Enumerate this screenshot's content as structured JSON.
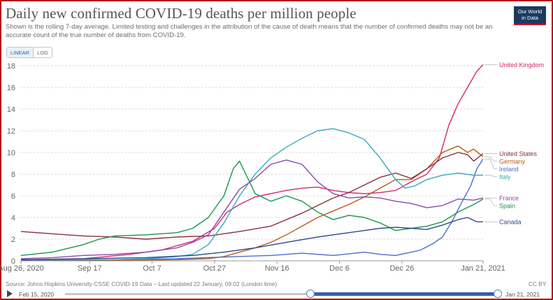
{
  "header": {
    "title": "Daily new confirmed COVID-19 deaths per million people",
    "subtitle": "Shown is the rolling 7-day average. Limited testing and challenges in the attribution of the cause of death means that the number of confirmed deaths may not be an accurate count of the true number of deaths from COVID-19.",
    "logo_line1": "Our World",
    "logo_line2": "in Data"
  },
  "scale_toggle": {
    "linear": "LINEAR",
    "log": "LOG",
    "selected": "LINEAR"
  },
  "footer": {
    "source": "Source: Johns Hopkins University CSSE COVID-19 Data – Last updated 22 January, 09:02 (London time)",
    "license": "CC BY"
  },
  "timeline": {
    "start": "Feb 15, 2020",
    "end": "Jan 21, 2021"
  },
  "colors": {
    "uk": "#d6266e",
    "germany": "#c05917",
    "ireland": "#58ac8c",
    "united_states": "#883039",
    "italy": "#38aaba",
    "spain": "#2c8465",
    "france": "#9a5129",
    "canada": "#286bbb",
    "series_spain_green": "#18954f",
    "series_france_purple": "#8c4aad",
    "series_ireland_blue": "#4c6ed1"
  },
  "chart_data": {
    "type": "line",
    "title": "Daily new confirmed COVID-19 deaths per million people",
    "xlabel": "",
    "ylabel": "",
    "ylim": [
      0,
      18
    ],
    "xlim": [
      0,
      148
    ],
    "yticks": [
      0,
      2,
      4,
      6,
      8,
      10,
      12,
      14,
      16,
      18
    ],
    "x_ticks": [
      {
        "label": "Aug 26, 2020",
        "x": 0
      },
      {
        "label": "Sep 17",
        "x": 22
      },
      {
        "label": "Oct 7",
        "x": 42
      },
      {
        "label": "Oct 27",
        "x": 62
      },
      {
        "label": "Nov 16",
        "x": 82
      },
      {
        "label": "Dec 6",
        "x": 102
      },
      {
        "label": "Dec 26",
        "x": 122
      },
      {
        "label": "Jan 21, 2021",
        "x": 148
      }
    ],
    "x_unit": "days since Aug 26, 2020",
    "series": [
      {
        "name": "United Kingdom",
        "color": "#d6266e",
        "x": [
          0,
          20,
          35,
          45,
          55,
          62,
          66,
          70,
          75,
          80,
          85,
          90,
          95,
          100,
          105,
          110,
          115,
          120,
          125,
          130,
          134,
          137,
          140,
          143,
          146,
          148
        ],
        "y": [
          0.1,
          0.2,
          0.6,
          1.0,
          1.8,
          3.0,
          4.5,
          5.2,
          5.9,
          6.2,
          6.5,
          6.7,
          6.8,
          6.5,
          6.3,
          6.2,
          6.3,
          6.5,
          7.3,
          8.0,
          9.5,
          12.5,
          14.5,
          16.0,
          17.5,
          18.1
        ]
      },
      {
        "name": "Germany",
        "color": "#c05917",
        "x": [
          0,
          30,
          50,
          60,
          65,
          70,
          75,
          80,
          85,
          90,
          95,
          100,
          105,
          110,
          115,
          120,
          125,
          130,
          135,
          140,
          143,
          145,
          148
        ],
        "y": [
          0.05,
          0.05,
          0.1,
          0.2,
          0.4,
          0.8,
          1.2,
          1.7,
          2.4,
          3.2,
          4.0,
          4.6,
          5.2,
          5.9,
          6.7,
          7.5,
          7.5,
          8.5,
          10.0,
          10.6,
          10.0,
          10.3,
          9.6
        ]
      },
      {
        "name": "Ireland",
        "color": "#4c6ed1",
        "x": [
          0,
          30,
          50,
          70,
          80,
          90,
          100,
          110,
          115,
          120,
          125,
          128,
          132,
          135,
          138,
          141,
          144,
          146,
          148
        ],
        "y": [
          0.05,
          0.1,
          0.2,
          0.4,
          0.5,
          0.7,
          0.5,
          0.8,
          0.6,
          0.5,
          0.8,
          1.0,
          1.6,
          2.2,
          3.6,
          5.3,
          6.9,
          8.5,
          9.4
        ]
      },
      {
        "name": "United States",
        "color": "#883039",
        "x": [
          0,
          10,
          20,
          30,
          40,
          50,
          60,
          70,
          80,
          90,
          100,
          105,
          110,
          115,
          120,
          125,
          130,
          135,
          140,
          143,
          145,
          148
        ],
        "y": [
          2.7,
          2.5,
          2.3,
          2.2,
          2.0,
          2.2,
          2.3,
          2.7,
          3.2,
          4.4,
          5.8,
          6.3,
          7.0,
          7.7,
          8.1,
          7.6,
          8.5,
          9.5,
          10.0,
          9.8,
          9.2,
          9.9
        ]
      },
      {
        "name": "Italy",
        "color": "#38aaba",
        "x": [
          0,
          30,
          40,
          50,
          55,
          60,
          65,
          70,
          75,
          80,
          85,
          90,
          95,
          100,
          105,
          110,
          115,
          120,
          123,
          126,
          130,
          135,
          140,
          145,
          148
        ],
        "y": [
          0.1,
          0.1,
          0.2,
          0.4,
          0.6,
          1.5,
          3.5,
          6.0,
          8.0,
          9.5,
          10.5,
          11.3,
          12.0,
          12.2,
          11.8,
          11.2,
          9.5,
          7.5,
          6.7,
          6.9,
          7.5,
          7.9,
          8.1,
          7.9,
          7.9
        ]
      },
      {
        "name": "Spain",
        "color": "#18954f",
        "x": [
          0,
          10,
          20,
          25,
          30,
          40,
          50,
          55,
          60,
          65,
          68,
          70,
          72,
          75,
          80,
          85,
          90,
          95,
          100,
          105,
          110,
          115,
          120,
          125,
          130,
          135,
          140,
          145,
          148
        ],
        "y": [
          0.5,
          0.8,
          1.5,
          2.0,
          2.3,
          2.4,
          2.6,
          3.0,
          4.0,
          6.0,
          8.5,
          9.2,
          8.0,
          6.2,
          5.5,
          6.0,
          5.5,
          4.5,
          3.8,
          4.2,
          4.0,
          3.5,
          2.8,
          3.0,
          3.2,
          3.6,
          4.5,
          5.2,
          5.7
        ]
      },
      {
        "name": "France",
        "color": "#8c4aad",
        "x": [
          0,
          10,
          20,
          30,
          40,
          50,
          55,
          60,
          65,
          70,
          75,
          80,
          85,
          90,
          95,
          100,
          105,
          110,
          115,
          120,
          125,
          130,
          135,
          140,
          145,
          148
        ],
        "y": [
          0.2,
          0.3,
          0.5,
          0.6,
          0.8,
          1.2,
          1.7,
          2.4,
          4.5,
          6.6,
          7.6,
          8.9,
          9.3,
          8.9,
          7.3,
          6.2,
          5.8,
          5.9,
          5.8,
          5.5,
          5.3,
          4.9,
          5.1,
          5.7,
          5.6,
          5.8
        ]
      },
      {
        "name": "Canada",
        "color": "#2c4a8a",
        "x": [
          0,
          20,
          40,
          55,
          65,
          75,
          85,
          95,
          105,
          115,
          120,
          125,
          130,
          135,
          140,
          143,
          146,
          148
        ],
        "y": [
          0.1,
          0.2,
          0.3,
          0.5,
          0.8,
          1.2,
          1.7,
          2.2,
          2.6,
          3.0,
          3.1,
          3.0,
          2.9,
          3.3,
          3.8,
          4.0,
          3.6,
          3.6
        ]
      }
    ],
    "legend_labels": [
      {
        "name": "United Kingdom",
        "color": "#d6266e"
      },
      {
        "name": "Germany",
        "color": "#c05917"
      },
      {
        "name": "Ireland",
        "color": "#4c6ed1"
      },
      {
        "name": "United States",
        "color": "#883039"
      },
      {
        "name": "Italy",
        "color": "#38aaba"
      },
      {
        "name": "Spain",
        "color": "#18954f"
      },
      {
        "name": "France",
        "color": "#8c4aad"
      },
      {
        "name": "Canada",
        "color": "#2c4a8a"
      }
    ],
    "legend": "right"
  }
}
